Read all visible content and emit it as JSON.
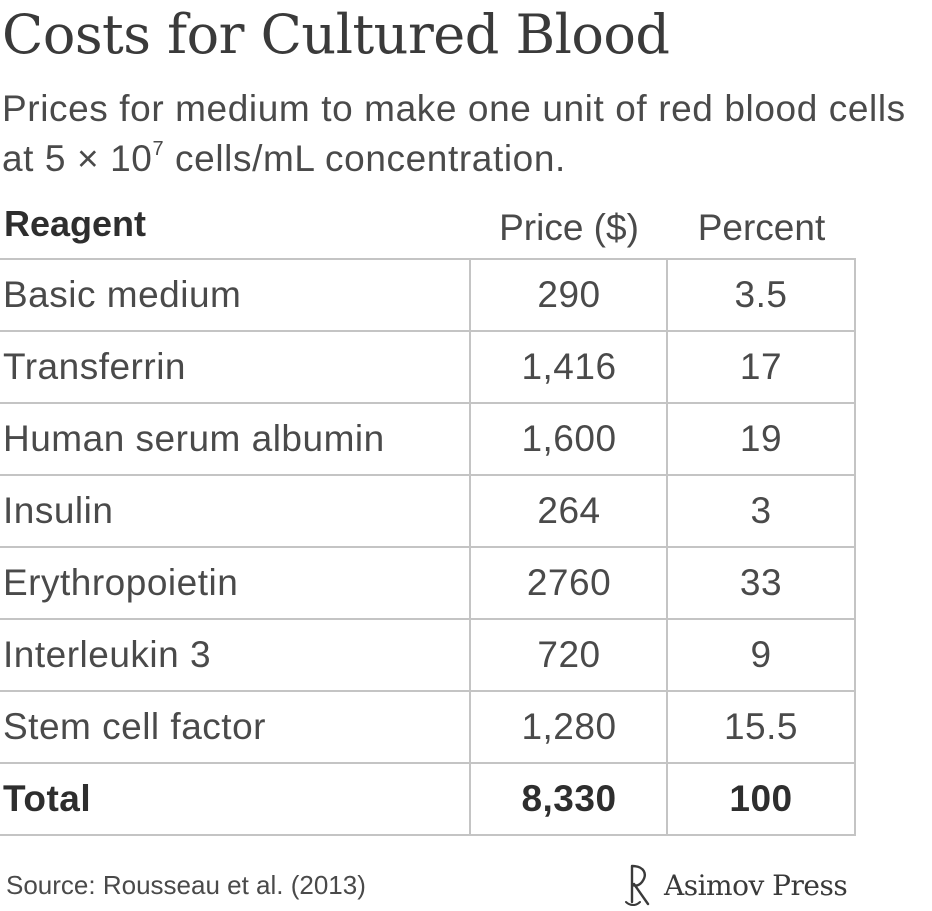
{
  "title": "Costs for Cultured Blood",
  "subtitle": {
    "before": "Prices for medium to make one unit of red blood cells at 5 × 10",
    "superscript": "7",
    "after": " cells/mL concentration."
  },
  "chart_data": {
    "type": "table",
    "columns": [
      "Reagent",
      "Price ($)",
      "Percent"
    ],
    "rows": [
      {
        "reagent": "Basic medium",
        "price": "290",
        "percent": "3.5"
      },
      {
        "reagent": "Transferrin",
        "price": "1,416",
        "percent": "17"
      },
      {
        "reagent": "Human serum albumin",
        "price": "1,600",
        "percent": "19"
      },
      {
        "reagent": "Insulin",
        "price": "264",
        "percent": "3"
      },
      {
        "reagent": "Erythropoietin",
        "price": "2760",
        "percent": "33"
      },
      {
        "reagent": "Interleukin 3",
        "price": "720",
        "percent": "9"
      },
      {
        "reagent": "Stem cell factor",
        "price": "1,280",
        "percent": "15.5"
      }
    ],
    "total": {
      "reagent": "Total",
      "price": "8,330",
      "percent": "100"
    }
  },
  "source": "Source: Rousseau et al. (2013)",
  "brand": {
    "name": "Asimov Press",
    "icon": "asimov-logo-icon"
  },
  "colors": {
    "text": "#3a3a3a",
    "grid": "#c4c4c4",
    "background": "#ffffff"
  }
}
